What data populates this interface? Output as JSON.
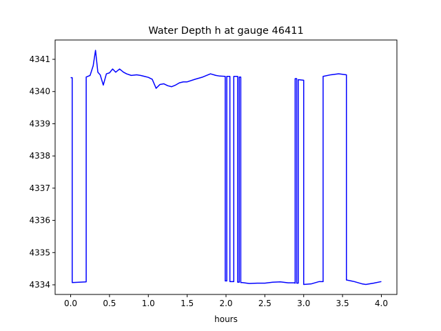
{
  "chart_data": {
    "type": "line",
    "title": "Water Depth h at gauge 46411",
    "xlabel": "hours",
    "ylabel": "",
    "xlim": [
      -0.2,
      4.2
    ],
    "ylim": [
      4333.7,
      4341.6
    ],
    "xticks": [
      {
        "value": 0.0,
        "label": "0.0"
      },
      {
        "value": 0.5,
        "label": "0.5"
      },
      {
        "value": 1.0,
        "label": "1.0"
      },
      {
        "value": 1.5,
        "label": "1.5"
      },
      {
        "value": 2.0,
        "label": "2.0"
      },
      {
        "value": 2.5,
        "label": "2.5"
      },
      {
        "value": 3.0,
        "label": "3.0"
      },
      {
        "value": 3.5,
        "label": "3.5"
      },
      {
        "value": 4.0,
        "label": "4.0"
      }
    ],
    "yticks": [
      {
        "value": 4334,
        "label": "4334"
      },
      {
        "value": 4335,
        "label": "4335"
      },
      {
        "value": 4336,
        "label": "4336"
      },
      {
        "value": 4337,
        "label": "4337"
      },
      {
        "value": 4338,
        "label": "4338"
      },
      {
        "value": 4339,
        "label": "4339"
      },
      {
        "value": 4340,
        "label": "4340"
      },
      {
        "value": 4341,
        "label": "4341"
      }
    ],
    "grid": false,
    "series": [
      {
        "color": "#0000ff",
        "x": [
          0.0,
          0.02,
          0.02,
          0.2,
          0.2,
          0.25,
          0.29,
          0.32,
          0.35,
          0.38,
          0.42,
          0.46,
          0.5,
          0.54,
          0.58,
          0.63,
          0.68,
          0.72,
          0.78,
          0.85,
          0.9,
          0.95,
          1.0,
          1.05,
          1.1,
          1.15,
          1.2,
          1.25,
          1.3,
          1.35,
          1.4,
          1.45,
          1.5,
          1.6,
          1.7,
          1.8,
          1.87,
          1.92,
          1.99,
          1.99,
          2.01,
          2.01,
          2.05,
          2.05,
          2.1,
          2.1,
          2.15,
          2.15,
          2.17,
          2.17,
          2.19,
          2.19,
          2.21,
          2.21,
          2.3,
          2.4,
          2.5,
          2.6,
          2.7,
          2.8,
          2.88,
          2.89,
          2.89,
          2.91,
          2.91,
          2.93,
          2.93,
          3.0,
          3.0,
          3.1,
          3.2,
          3.25,
          3.25,
          3.35,
          3.45,
          3.55,
          3.55,
          3.65,
          3.75,
          3.8,
          3.9,
          4.0
        ],
        "y": [
          4340.43,
          4340.43,
          4334.07,
          4334.09,
          4340.45,
          4340.5,
          4340.8,
          4341.28,
          4340.6,
          4340.52,
          4340.2,
          4340.55,
          4340.58,
          4340.7,
          4340.6,
          4340.7,
          4340.6,
          4340.55,
          4340.5,
          4340.52,
          4340.5,
          4340.47,
          4340.44,
          4340.38,
          4340.1,
          4340.22,
          4340.24,
          4340.18,
          4340.15,
          4340.2,
          4340.27,
          4340.3,
          4340.3,
          4340.38,
          4340.45,
          4340.55,
          4340.5,
          4340.48,
          4340.47,
          4334.12,
          4334.12,
          4340.47,
          4340.47,
          4334.1,
          4334.1,
          4340.47,
          4340.47,
          4334.08,
          4334.08,
          4340.45,
          4340.45,
          4334.07,
          4334.07,
          4334.07,
          4334.04,
          4334.05,
          4334.05,
          4334.08,
          4334.09,
          4334.06,
          4334.06,
          4334.05,
          4340.4,
          4340.4,
          4334.05,
          4334.05,
          4340.37,
          4340.35,
          4334.01,
          4334.03,
          4334.1,
          4334.1,
          4340.47,
          4340.52,
          4340.55,
          4340.52,
          4334.15,
          4334.1,
          4334.03,
          4334.01,
          4334.05,
          4334.1
        ]
      }
    ]
  }
}
